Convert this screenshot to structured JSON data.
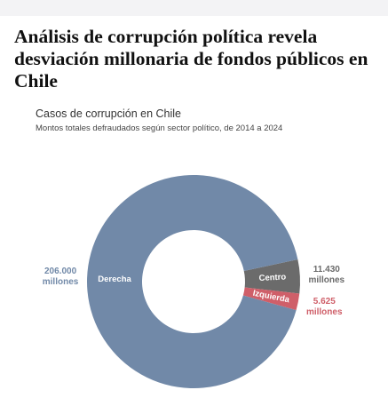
{
  "headline": "Análisis de corrupción política revela desviación millonaria de fondos públicos en Chile",
  "chart_data": {
    "type": "donut",
    "title": "Casos de corrupción en Chile",
    "subtitle": "Montos totales defraudados según sector político, de 2014 a 2024",
    "categories": [
      "Centro",
      "Izquierda",
      "Derecha"
    ],
    "values": [
      11430,
      5625,
      206000
    ],
    "value_labels": [
      "11.430 millones",
      "5.625 millones",
      "206.000 millones"
    ],
    "colors": [
      "#6b6b6b",
      "#cf5f69",
      "#7189a8"
    ]
  }
}
